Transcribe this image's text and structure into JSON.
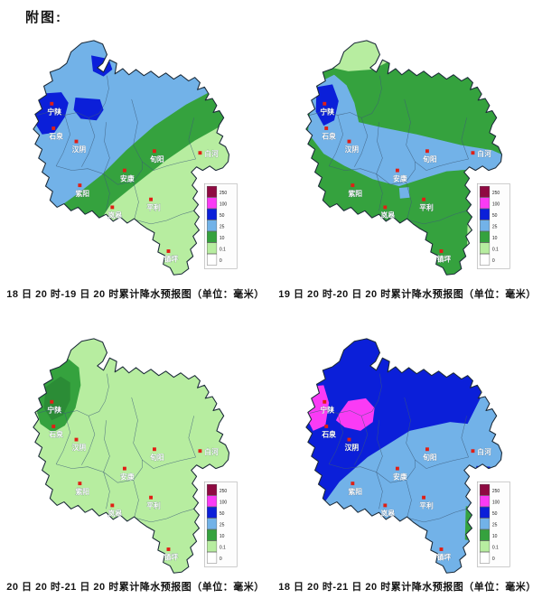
{
  "header": {
    "title": "附图:"
  },
  "colors": {
    "light_blue": "#72b2e8",
    "blue": "#0b1fd9",
    "green": "#35a23e",
    "green_dark": "#2b8c36",
    "light_green": "#b7eda0",
    "magenta": "#fa3bf5",
    "dark_red": "#8f0a42",
    "white": "#ffffff",
    "outline": "#1b2a38",
    "county_border": "#3c5a78",
    "city_dot": "#e01f15",
    "city_label": "#ffffff"
  },
  "legend": {
    "values": [
      "250",
      "100",
      "50",
      "25",
      "10",
      "0.1",
      "0"
    ],
    "color_keys": [
      "dark_red",
      "magenta",
      "blue",
      "light_blue",
      "green",
      "light_green",
      "white"
    ]
  },
  "cities": [
    {
      "name": "宁陕"
    },
    {
      "name": "石泉"
    },
    {
      "name": "汉阴"
    },
    {
      "name": "紫阳"
    },
    {
      "name": "安康"
    },
    {
      "name": "旬阳"
    },
    {
      "name": "白河"
    },
    {
      "name": "岚皋"
    },
    {
      "name": "平利"
    },
    {
      "name": "镇坪"
    }
  ],
  "maps": [
    {
      "caption": "18 日 20 时-19 日 20 时累计降水预报图（单位：毫米）"
    },
    {
      "caption": "19 日 20 时-20 日 20 时累计降水预报图（单位：毫米）"
    },
    {
      "caption": "20 日 20 时-21 日 20 时累计降水预报图（单位：毫米）"
    },
    {
      "caption": "18 日 20 时-21 日 20 时累计降水预报图（单位：毫米）"
    }
  ]
}
